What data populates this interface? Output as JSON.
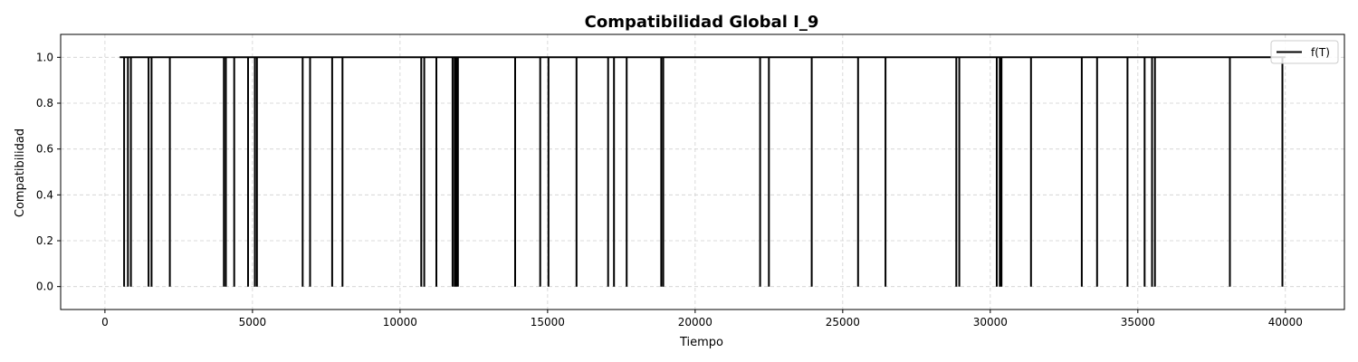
{
  "chart_data": {
    "type": "line",
    "title": "Compatibilidad Global I_9",
    "xlabel": "Tiempo",
    "ylabel": "Compatibilidad",
    "xlim": [
      -1500,
      42000
    ],
    "ylim": [
      -0.1,
      1.1
    ],
    "xticks": [
      0,
      5000,
      10000,
      15000,
      20000,
      25000,
      30000,
      35000,
      40000
    ],
    "yticks": [
      0.0,
      0.2,
      0.4,
      0.6,
      0.8,
      1.0
    ],
    "xtick_labels": [
      "0",
      "5000",
      "10000",
      "15000",
      "20000",
      "25000",
      "30000",
      "35000",
      "40000"
    ],
    "ytick_labels": [
      "0.0",
      "0.2",
      "0.4",
      "0.6",
      "0.8",
      "1.0"
    ],
    "grid": true,
    "legend_position": "top-right",
    "series": [
      {
        "name": "f(T)",
        "color": "#000000",
        "x_start": 500,
        "x_end": 40000,
        "baseline": 1.0,
        "dips_to": 0.0,
        "dip_times": [
          650,
          780,
          880,
          1480,
          1580,
          2200,
          4030,
          4100,
          4380,
          4850,
          5080,
          5150,
          6700,
          6950,
          7700,
          8050,
          10720,
          10820,
          11230,
          11780,
          11850,
          11900,
          11960,
          13900,
          14750,
          15030,
          15980,
          17050,
          17250,
          17680,
          18850,
          18920,
          22200,
          22500,
          23950,
          25520,
          26450,
          28850,
          28950,
          30220,
          30320,
          30380,
          31380,
          33100,
          33620,
          34650,
          35230,
          35480,
          35580,
          38120,
          39900
        ]
      }
    ]
  }
}
